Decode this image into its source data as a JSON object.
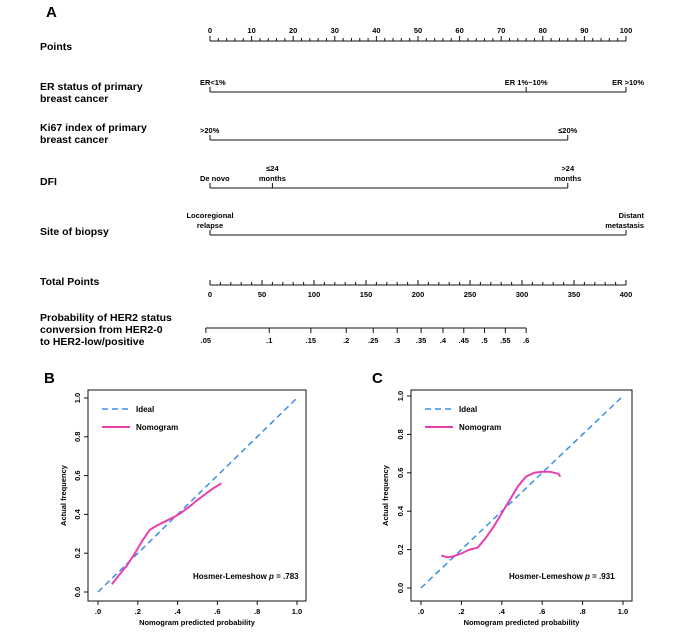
{
  "figure": {
    "panels": {
      "a": "A",
      "b": "B",
      "c": "C"
    }
  },
  "chart_data": [
    {
      "type": "nomogram",
      "panel": "A",
      "rows": [
        {
          "label": [
            "Points"
          ],
          "ticks": [
            0,
            10,
            20,
            30,
            40,
            50,
            60,
            70,
            80,
            90,
            100
          ],
          "minor_step": 2
        },
        {
          "label": [
            "ER status of primary",
            "breast cancer"
          ],
          "marks": [
            {
              "text": [
                "ER<1%"
              ],
              "points": 0
            },
            {
              "text": [
                "ER 1%~10%"
              ],
              "points": 76
            },
            {
              "text": [
                "ER >10%"
              ],
              "points": 100
            }
          ]
        },
        {
          "label": [
            "Ki67 index of primary",
            "breast cancer"
          ],
          "marks": [
            {
              "text": [
                ">20%"
              ],
              "points": 0
            },
            {
              "text": [
                "≤20%"
              ],
              "points": 86
            }
          ]
        },
        {
          "label": [
            "DFI"
          ],
          "marks": [
            {
              "text": [
                "De novo"
              ],
              "points": 0
            },
            {
              "text": [
                "≤24",
                "months"
              ],
              "points": 15
            },
            {
              "text": [
                ">24",
                "months"
              ],
              "points": 86
            }
          ]
        },
        {
          "label": [
            "Site of biopsy"
          ],
          "marks": [
            {
              "text": [
                "Locoregional",
                "relapse"
              ],
              "points": 0
            },
            {
              "text": [
                "Distant",
                "metastasis"
              ],
              "points": 100
            }
          ]
        },
        {
          "label": [
            "Total Points"
          ],
          "ticks": [
            0,
            50,
            100,
            150,
            200,
            250,
            300,
            350,
            400
          ],
          "minor_step": 10
        },
        {
          "label": [
            "Probability of HER2 status",
            "conversion from HER2-0",
            "to HER2-low/positive"
          ],
          "ticks": [
            ".05",
            ".1",
            ".15",
            ".2",
            ".25",
            ".3",
            ".35",
            ".4",
            ".45",
            ".5",
            ".55",
            ".6"
          ],
          "tick_values": [
            0.05,
            0.1,
            0.15,
            0.2,
            0.25,
            0.3,
            0.35,
            0.4,
            0.45,
            0.5,
            0.55,
            0.6
          ],
          "total_points_at_ticks": [
            -4,
            57,
            97,
            131,
            157,
            180,
            203,
            224,
            244,
            264,
            284,
            304
          ]
        }
      ]
    },
    {
      "type": "line",
      "panel": "B",
      "xlabel": "Nomogram predicted probability",
      "ylabel": "Actual frequency",
      "xlim": [
        0,
        1
      ],
      "ylim": [
        0,
        1
      ],
      "xticks": [
        ".0",
        ".2",
        ".4",
        ".6",
        ".8",
        "1.0"
      ],
      "yticks": [
        "0.0",
        "0.2",
        "0.4",
        "0.6",
        "0.8",
        "1.0"
      ],
      "legend": "top-left",
      "series": [
        {
          "name": "Ideal",
          "x": [
            0,
            1
          ],
          "y": [
            0,
            1
          ],
          "color": "#3a8ee6",
          "dash": true
        },
        {
          "name": "Nomogram",
          "color": "#e83fb0",
          "x": [
            0.07,
            0.1,
            0.14,
            0.18,
            0.22,
            0.26,
            0.3,
            0.34,
            0.38,
            0.42,
            0.46,
            0.5,
            0.54,
            0.58,
            0.62
          ],
          "y": [
            0.04,
            0.08,
            0.13,
            0.19,
            0.26,
            0.32,
            0.345,
            0.365,
            0.385,
            0.41,
            0.44,
            0.475,
            0.505,
            0.535,
            0.56
          ]
        }
      ],
      "annotation": {
        "prefix": "Hosmer-Lemeshow ",
        "italic": "p",
        "suffix": " = .783"
      }
    },
    {
      "type": "line",
      "panel": "C",
      "xlabel": "Nomogram predicted probability",
      "ylabel": "Actual frequency",
      "xlim": [
        0,
        1
      ],
      "ylim": [
        0,
        1
      ],
      "xticks": [
        ".0",
        ".2",
        ".4",
        ".6",
        ".8",
        "1.0"
      ],
      "yticks": [
        "0.0",
        "0.2",
        "0.4",
        "0.6",
        "0.8",
        "1.0"
      ],
      "legend": "top-left",
      "series": [
        {
          "name": "Ideal",
          "x": [
            0,
            1
          ],
          "y": [
            0,
            1
          ],
          "color": "#3a8ee6",
          "dash": true
        },
        {
          "name": "Nomogram",
          "color": "#e83fb0",
          "x": [
            0.1,
            0.13,
            0.16,
            0.2,
            0.24,
            0.28,
            0.32,
            0.36,
            0.4,
            0.44,
            0.48,
            0.52,
            0.56,
            0.6,
            0.64,
            0.68,
            0.69
          ],
          "y": [
            0.17,
            0.16,
            0.165,
            0.18,
            0.2,
            0.21,
            0.26,
            0.32,
            0.39,
            0.46,
            0.53,
            0.58,
            0.6,
            0.605,
            0.605,
            0.595,
            0.58
          ]
        }
      ],
      "annotation": {
        "prefix": "Hosmer-Lemeshow ",
        "italic": "p",
        "suffix": " = .931"
      }
    }
  ]
}
